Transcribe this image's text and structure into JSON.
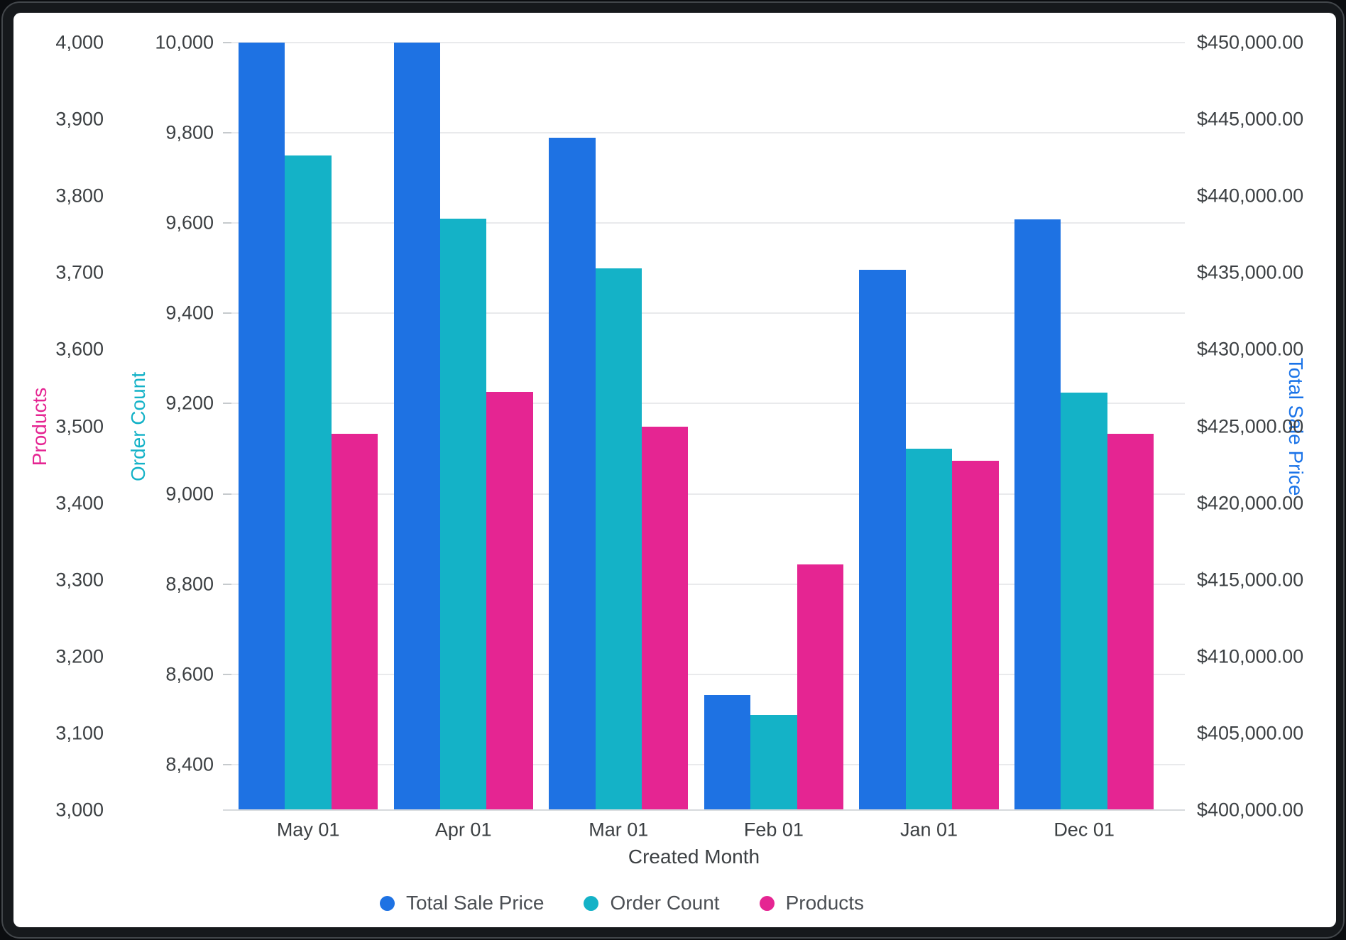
{
  "chart_data": {
    "type": "bar",
    "title": "",
    "xlabel": "Created Month",
    "categories": [
      "May 01",
      "Apr 01",
      "Mar 01",
      "Feb 01",
      "Jan 01",
      "Dec 01"
    ],
    "series": [
      {
        "name": "Total Sale Price",
        "axis": "price",
        "color": "#1e72e3",
        "values": [
          450000,
          450000,
          443800,
          407500,
          435200,
          438500
        ]
      },
      {
        "name": "Order Count",
        "axis": "orders",
        "color": "#14b2c7",
        "values": [
          9750,
          9610,
          9500,
          8510,
          9100,
          9225
        ]
      },
      {
        "name": "Products",
        "axis": "products",
        "color": "#e52592",
        "values": [
          3490,
          3545,
          3500,
          3320,
          3455,
          3490
        ]
      }
    ],
    "axes": {
      "products": {
        "title": "Products",
        "side": "left",
        "title_color": "#e52592",
        "min": 3000,
        "max": 4000,
        "tick_values": [
          4000,
          3900,
          3800,
          3700,
          3600,
          3500,
          3400,
          3300,
          3200,
          3100,
          3000
        ],
        "tick_labels": [
          "4,000",
          "3,900",
          "3,800",
          "3,700",
          "3,600",
          "3,500",
          "3,400",
          "3,300",
          "3,200",
          "3,100",
          "3,000"
        ]
      },
      "orders": {
        "title": "Order Count",
        "side": "left",
        "title_color": "#14b2c7",
        "min": 8299,
        "max": 10000,
        "tick_values": [
          10000,
          9800,
          9600,
          9400,
          9200,
          9000,
          8800,
          8600,
          8400
        ],
        "tick_labels": [
          "10,000",
          "9,800",
          "9,600",
          "9,400",
          "9,200",
          "9,000",
          "8,800",
          "8,600",
          "8,400"
        ]
      },
      "price": {
        "title": "Total Sale Price",
        "side": "right",
        "title_color": "#1a73e8",
        "min": 400000,
        "max": 450000,
        "tick_values": [
          450000,
          445000,
          440000,
          435000,
          430000,
          425000,
          420000,
          415000,
          410000,
          405000,
          400000
        ],
        "tick_labels": [
          "$450,000.00",
          "$445,000.00",
          "$440,000.00",
          "$435,000.00",
          "$430,000.00",
          "$425,000.00",
          "$420,000.00",
          "$415,000.00",
          "$410,000.00",
          "$405,000.00",
          "$400,000.00"
        ]
      }
    },
    "legend": [
      "Total Sale Price",
      "Order Count",
      "Products"
    ],
    "grid": "horizontal gridlines aligned to Order Count ticks",
    "legend_position": "bottom-center"
  }
}
